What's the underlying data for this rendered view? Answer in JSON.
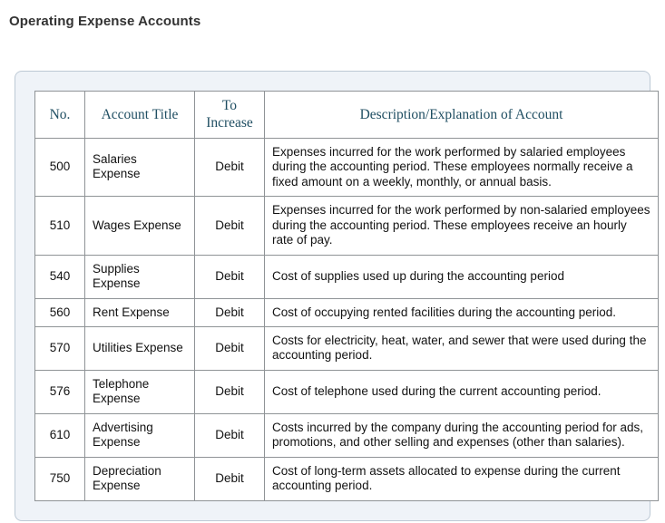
{
  "page": {
    "title": "Operating Expense Accounts"
  },
  "colors": {
    "title_text": "#333333",
    "header_text": "#1f4e62",
    "panel_background": "#eff3f8",
    "panel_border": "#bdc9d5",
    "table_border": "#8f9396",
    "cell_background": "#ffffff",
    "body_text": "#121212"
  },
  "table": {
    "columns": [
      "No.",
      "Account Title",
      "To Increase",
      "Description/Explanation of Account"
    ],
    "rows": [
      {
        "no": "500",
        "title": "Salaries Expense",
        "increase": "Debit",
        "description": "Expenses incurred for the work performed by salaried employees during the accounting period. These employees normally receive a fixed amount on a weekly, monthly, or annual basis."
      },
      {
        "no": "510",
        "title": "Wages Expense",
        "increase": "Debit",
        "description": "Expenses incurred for the work performed by non-salaried employees during the accounting period. These employees receive an hourly rate of pay."
      },
      {
        "no": "540",
        "title": "Supplies Expense",
        "increase": "Debit",
        "description": "Cost of supplies used up during the accounting period"
      },
      {
        "no": "560",
        "title": "Rent Expense",
        "increase": "Debit",
        "description": "Cost of occupying rented facilities during the accounting period."
      },
      {
        "no": "570",
        "title": "Utilities Expense",
        "increase": "Debit",
        "description": "Costs for electricity, heat, water, and sewer that were used during the accounting period."
      },
      {
        "no": "576",
        "title": "Telephone Expense",
        "increase": "Debit",
        "description": "Cost of telephone used during the current accounting period."
      },
      {
        "no": "610",
        "title": "Advertising Expense",
        "increase": "Debit",
        "description": "Costs incurred by the company during the accounting period for ads, promotions, and other selling and expenses (other than salaries)."
      },
      {
        "no": "750",
        "title": "Depreciation Expense",
        "increase": "Debit",
        "description": "Cost of long-term assets allocated to expense during the current accounting period."
      }
    ]
  }
}
